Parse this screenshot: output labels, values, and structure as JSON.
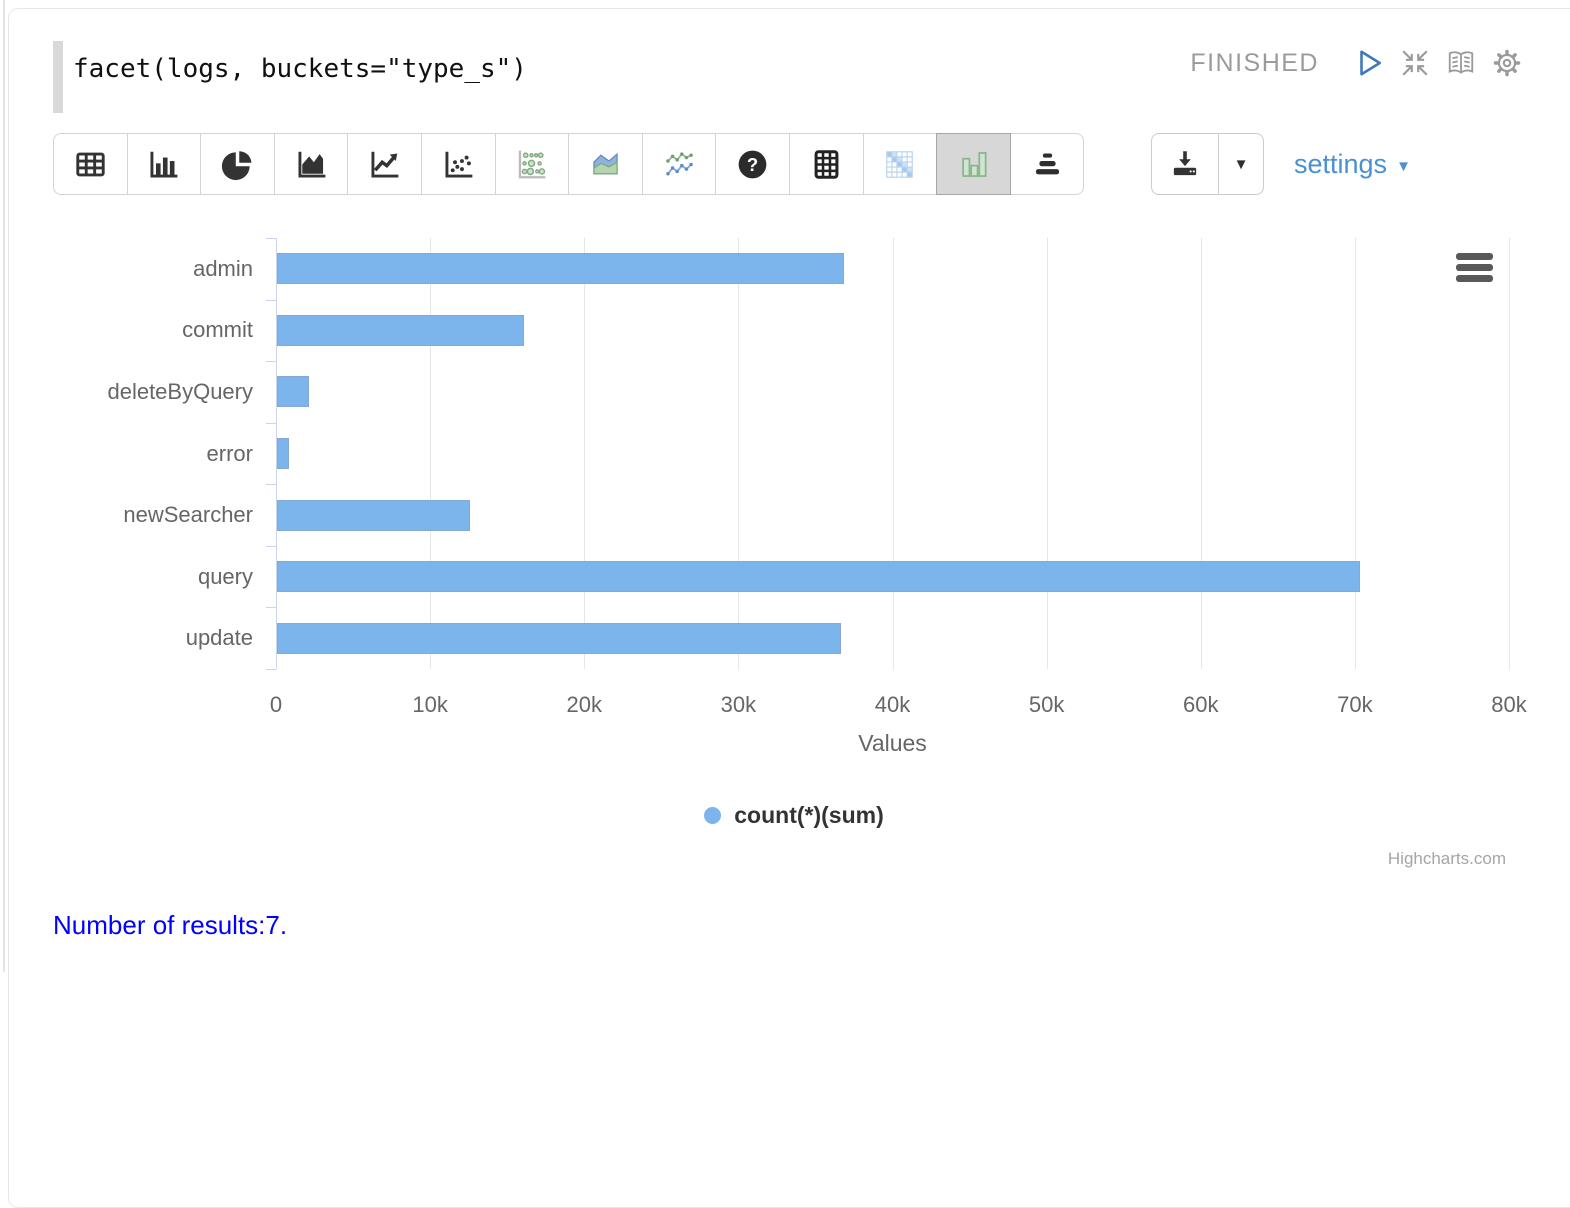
{
  "editor": {
    "query": "facet(logs, buckets=\"type_s\")"
  },
  "status": {
    "label": "FINISHED",
    "icons": [
      "play-icon",
      "compress-icon",
      "book-icon",
      "gear-icon"
    ]
  },
  "toolbar": {
    "buttons": [
      {
        "name": "table",
        "selected": false
      },
      {
        "name": "column",
        "selected": false
      },
      {
        "name": "pie",
        "selected": false
      },
      {
        "name": "area",
        "selected": false
      },
      {
        "name": "line",
        "selected": false
      },
      {
        "name": "scatter",
        "selected": false
      },
      {
        "name": "bubble",
        "selected": false
      },
      {
        "name": "stacked-area",
        "selected": false
      },
      {
        "name": "multi-line",
        "selected": false
      },
      {
        "name": "help",
        "selected": false
      },
      {
        "name": "grid",
        "selected": false
      },
      {
        "name": "heatmap",
        "selected": false
      },
      {
        "name": "grouped-column",
        "selected": true
      },
      {
        "name": "pyramid",
        "selected": false
      }
    ],
    "settings_label": "settings"
  },
  "chart_data": {
    "type": "bar",
    "title": "",
    "categories": [
      "admin",
      "commit",
      "deleteByQuery",
      "error",
      "newSearcher",
      "query",
      "update"
    ],
    "series": [
      {
        "name": "count(*)(sum)",
        "values": [
          36800,
          16000,
          2100,
          800,
          12500,
          70300,
          36600
        ]
      }
    ],
    "xlabel": "Values",
    "xlim": [
      0,
      80000
    ],
    "tick_interval": 10000,
    "tick_labels": [
      "0",
      "10k",
      "20k",
      "30k",
      "40k",
      "50k",
      "60k",
      "70k",
      "80k"
    ],
    "grid": true,
    "legend_position": "bottom",
    "bar_color": "#7cb5ec",
    "credits": "Highcharts.com"
  },
  "footer": {
    "results_text": "Number of results:7."
  }
}
